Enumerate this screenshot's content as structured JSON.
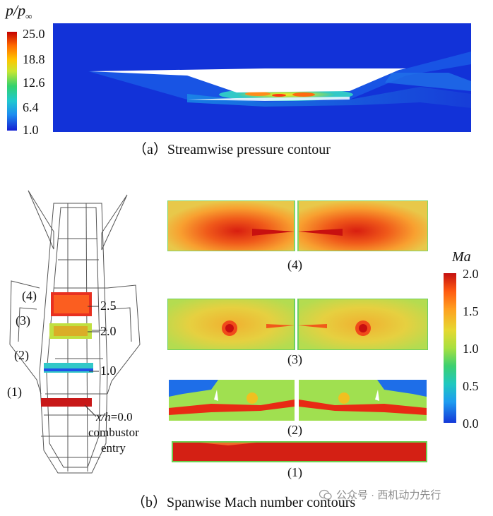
{
  "figure_a": {
    "colorbar_title_base": "p/p",
    "colorbar_title_sub": "∞",
    "colorbar_ticks": [
      "25.0",
      "18.8",
      "12.6",
      "6.4",
      "1.0"
    ],
    "caption": "（a）Streamwise pressure contour"
  },
  "figure_b": {
    "stations": [
      "(4)",
      "(3)",
      "(2)",
      "(1)"
    ],
    "xh_values": [
      "2.5",
      "2.0",
      "1.0"
    ],
    "xh_prefix": "x/h",
    "xh_zero": "=0.0",
    "combustor_label": "combustor",
    "entry_label": "entry",
    "panel_labels": [
      "(4)",
      "(3)",
      "(2)",
      "(1)"
    ],
    "colorbar_title": "Ma",
    "colorbar_ticks": [
      "2.0",
      "1.5",
      "1.0",
      "0.5",
      "0.0"
    ],
    "caption": "（b）Spanwise Mach number contours"
  },
  "watermark": {
    "icon": "wechat-icon",
    "text": "公众号 · 西机动力先行"
  }
}
